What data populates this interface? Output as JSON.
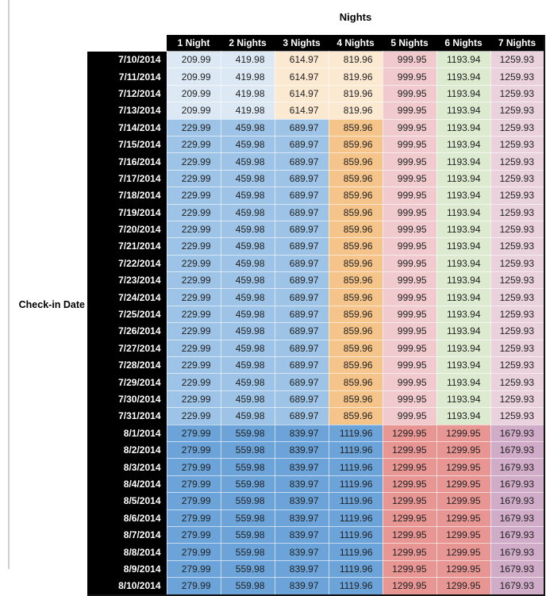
{
  "chart_data": {
    "type": "table",
    "title": "Nights",
    "row_axis_label": "Check-in Date",
    "columns": [
      "1 Night",
      "2 Nights",
      "3 Nights",
      "4 Nights",
      "5 Nights",
      "6 Nights",
      "7 Nights"
    ],
    "rows": [
      {
        "date": "7/10/2014",
        "group": "a",
        "values": [
          "209.99",
          "419.98",
          "614.97",
          "819.96",
          "999.95",
          "1193.94",
          "1259.93"
        ]
      },
      {
        "date": "7/11/2014",
        "group": "a",
        "values": [
          "209.99",
          "419.98",
          "614.97",
          "819.96",
          "999.95",
          "1193.94",
          "1259.93"
        ]
      },
      {
        "date": "7/12/2014",
        "group": "a",
        "values": [
          "209.99",
          "419.98",
          "614.97",
          "819.96",
          "999.95",
          "1193.94",
          "1259.93"
        ]
      },
      {
        "date": "7/13/2014",
        "group": "a",
        "values": [
          "209.99",
          "419.98",
          "614.97",
          "819.96",
          "999.95",
          "1193.94",
          "1259.93"
        ]
      },
      {
        "date": "7/14/2014",
        "group": "b",
        "values": [
          "229.99",
          "459.98",
          "689.97",
          "859.96",
          "999.95",
          "1193.94",
          "1259.93"
        ]
      },
      {
        "date": "7/15/2014",
        "group": "b",
        "values": [
          "229.99",
          "459.98",
          "689.97",
          "859.96",
          "999.95",
          "1193.94",
          "1259.93"
        ]
      },
      {
        "date": "7/16/2014",
        "group": "b",
        "values": [
          "229.99",
          "459.98",
          "689.97",
          "859.96",
          "999.95",
          "1193.94",
          "1259.93"
        ]
      },
      {
        "date": "7/17/2014",
        "group": "b",
        "values": [
          "229.99",
          "459.98",
          "689.97",
          "859.96",
          "999.95",
          "1193.94",
          "1259.93"
        ]
      },
      {
        "date": "7/18/2014",
        "group": "b",
        "values": [
          "229.99",
          "459.98",
          "689.97",
          "859.96",
          "999.95",
          "1193.94",
          "1259.93"
        ]
      },
      {
        "date": "7/19/2014",
        "group": "b",
        "values": [
          "229.99",
          "459.98",
          "689.97",
          "859.96",
          "999.95",
          "1193.94",
          "1259.93"
        ]
      },
      {
        "date": "7/20/2014",
        "group": "b",
        "values": [
          "229.99",
          "459.98",
          "689.97",
          "859.96",
          "999.95",
          "1193.94",
          "1259.93"
        ]
      },
      {
        "date": "7/21/2014",
        "group": "b",
        "values": [
          "229.99",
          "459.98",
          "689.97",
          "859.96",
          "999.95",
          "1193.94",
          "1259.93"
        ]
      },
      {
        "date": "7/22/2014",
        "group": "b",
        "values": [
          "229.99",
          "459.98",
          "689.97",
          "859.96",
          "999.95",
          "1193.94",
          "1259.93"
        ]
      },
      {
        "date": "7/23/2014",
        "group": "b",
        "values": [
          "229.99",
          "459.98",
          "689.97",
          "859.96",
          "999.95",
          "1193.94",
          "1259.93"
        ]
      },
      {
        "date": "7/24/2014",
        "group": "b",
        "values": [
          "229.99",
          "459.98",
          "689.97",
          "859.96",
          "999.95",
          "1193.94",
          "1259.93"
        ]
      },
      {
        "date": "7/25/2014",
        "group": "b",
        "values": [
          "229.99",
          "459.98",
          "689.97",
          "859.96",
          "999.95",
          "1193.94",
          "1259.93"
        ]
      },
      {
        "date": "7/26/2014",
        "group": "b",
        "values": [
          "229.99",
          "459.98",
          "689.97",
          "859.96",
          "999.95",
          "1193.94",
          "1259.93"
        ]
      },
      {
        "date": "7/27/2014",
        "group": "b",
        "values": [
          "229.99",
          "459.98",
          "689.97",
          "859.96",
          "999.95",
          "1193.94",
          "1259.93"
        ]
      },
      {
        "date": "7/28/2014",
        "group": "b",
        "values": [
          "229.99",
          "459.98",
          "689.97",
          "859.96",
          "999.95",
          "1193.94",
          "1259.93"
        ]
      },
      {
        "date": "7/29/2014",
        "group": "b",
        "values": [
          "229.99",
          "459.98",
          "689.97",
          "859.96",
          "999.95",
          "1193.94",
          "1259.93"
        ]
      },
      {
        "date": "7/30/2014",
        "group": "b",
        "values": [
          "229.99",
          "459.98",
          "689.97",
          "859.96",
          "999.95",
          "1193.94",
          "1259.93"
        ]
      },
      {
        "date": "7/31/2014",
        "group": "b",
        "values": [
          "229.99",
          "459.98",
          "689.97",
          "859.96",
          "999.95",
          "1193.94",
          "1259.93"
        ]
      },
      {
        "date": "8/1/2014",
        "group": "c",
        "values": [
          "279.99",
          "559.98",
          "839.97",
          "1119.96",
          "1299.95",
          "1299.95",
          "1679.93"
        ]
      },
      {
        "date": "8/2/2014",
        "group": "c",
        "values": [
          "279.99",
          "559.98",
          "839.97",
          "1119.96",
          "1299.95",
          "1299.95",
          "1679.93"
        ]
      },
      {
        "date": "8/3/2014",
        "group": "c",
        "values": [
          "279.99",
          "559.98",
          "839.97",
          "1119.96",
          "1299.95",
          "1299.95",
          "1679.93"
        ]
      },
      {
        "date": "8/4/2014",
        "group": "c",
        "values": [
          "279.99",
          "559.98",
          "839.97",
          "1119.96",
          "1299.95",
          "1299.95",
          "1679.93"
        ]
      },
      {
        "date": "8/5/2014",
        "group": "c",
        "values": [
          "279.99",
          "559.98",
          "839.97",
          "1119.96",
          "1299.95",
          "1299.95",
          "1679.93"
        ]
      },
      {
        "date": "8/6/2014",
        "group": "c",
        "values": [
          "279.99",
          "559.98",
          "839.97",
          "1119.96",
          "1299.95",
          "1299.95",
          "1679.93"
        ]
      },
      {
        "date": "8/7/2014",
        "group": "c",
        "values": [
          "279.99",
          "559.98",
          "839.97",
          "1119.96",
          "1299.95",
          "1299.95",
          "1679.93"
        ]
      },
      {
        "date": "8/8/2014",
        "group": "c",
        "values": [
          "279.99",
          "559.98",
          "839.97",
          "1119.96",
          "1299.95",
          "1299.95",
          "1679.93"
        ]
      },
      {
        "date": "8/9/2014",
        "group": "c",
        "values": [
          "279.99",
          "559.98",
          "839.97",
          "1119.96",
          "1299.95",
          "1299.95",
          "1679.93"
        ]
      },
      {
        "date": "8/10/2014",
        "group": "c",
        "values": [
          "279.99",
          "559.98",
          "839.97",
          "1119.96",
          "1299.95",
          "1299.95",
          "1679.93"
        ]
      }
    ]
  },
  "styles": {
    "header_bg": "#000000",
    "header_text": "#ffffff",
    "date_col_bg": "#000000",
    "date_col_text": "#ffffff",
    "edge_line_color": "#cdd0d3",
    "group_colors": {
      "a": [
        "#DCE9F5",
        "#DCE9F5",
        "#FBE9D2",
        "#FBE9D2",
        "#F1CACD",
        "#DCEACF",
        "#EAD2DD"
      ],
      "b": [
        "#9DC3E6",
        "#9DC3E6",
        "#9DC3E6",
        "#F4C48A",
        "#F1CACD",
        "#DCEACF",
        "#EAD2DD"
      ],
      "c": [
        "#6CA4D9",
        "#6CA4D9",
        "#6CA4D9",
        "#6CA4D9",
        "#E79694",
        "#E79694",
        "#D0ACC8"
      ]
    }
  }
}
